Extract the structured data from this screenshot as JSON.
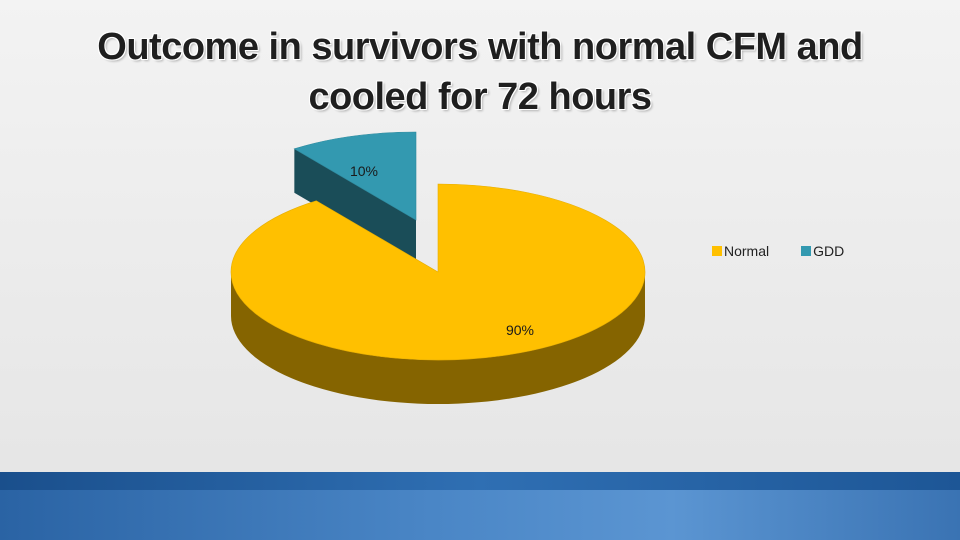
{
  "slide": {
    "title_line1": "Outcome in survivors with normal CFM and",
    "title_line2": "cooled for 72 hours"
  },
  "chart_data": {
    "type": "pie",
    "style": "3d-exploded",
    "categories": [
      "Normal",
      "GDD"
    ],
    "values": [
      90,
      10
    ],
    "data_labels": [
      "90%",
      "10%"
    ],
    "colors": [
      "#FFC000",
      "#3399B0"
    ],
    "legend_position": "right"
  }
}
